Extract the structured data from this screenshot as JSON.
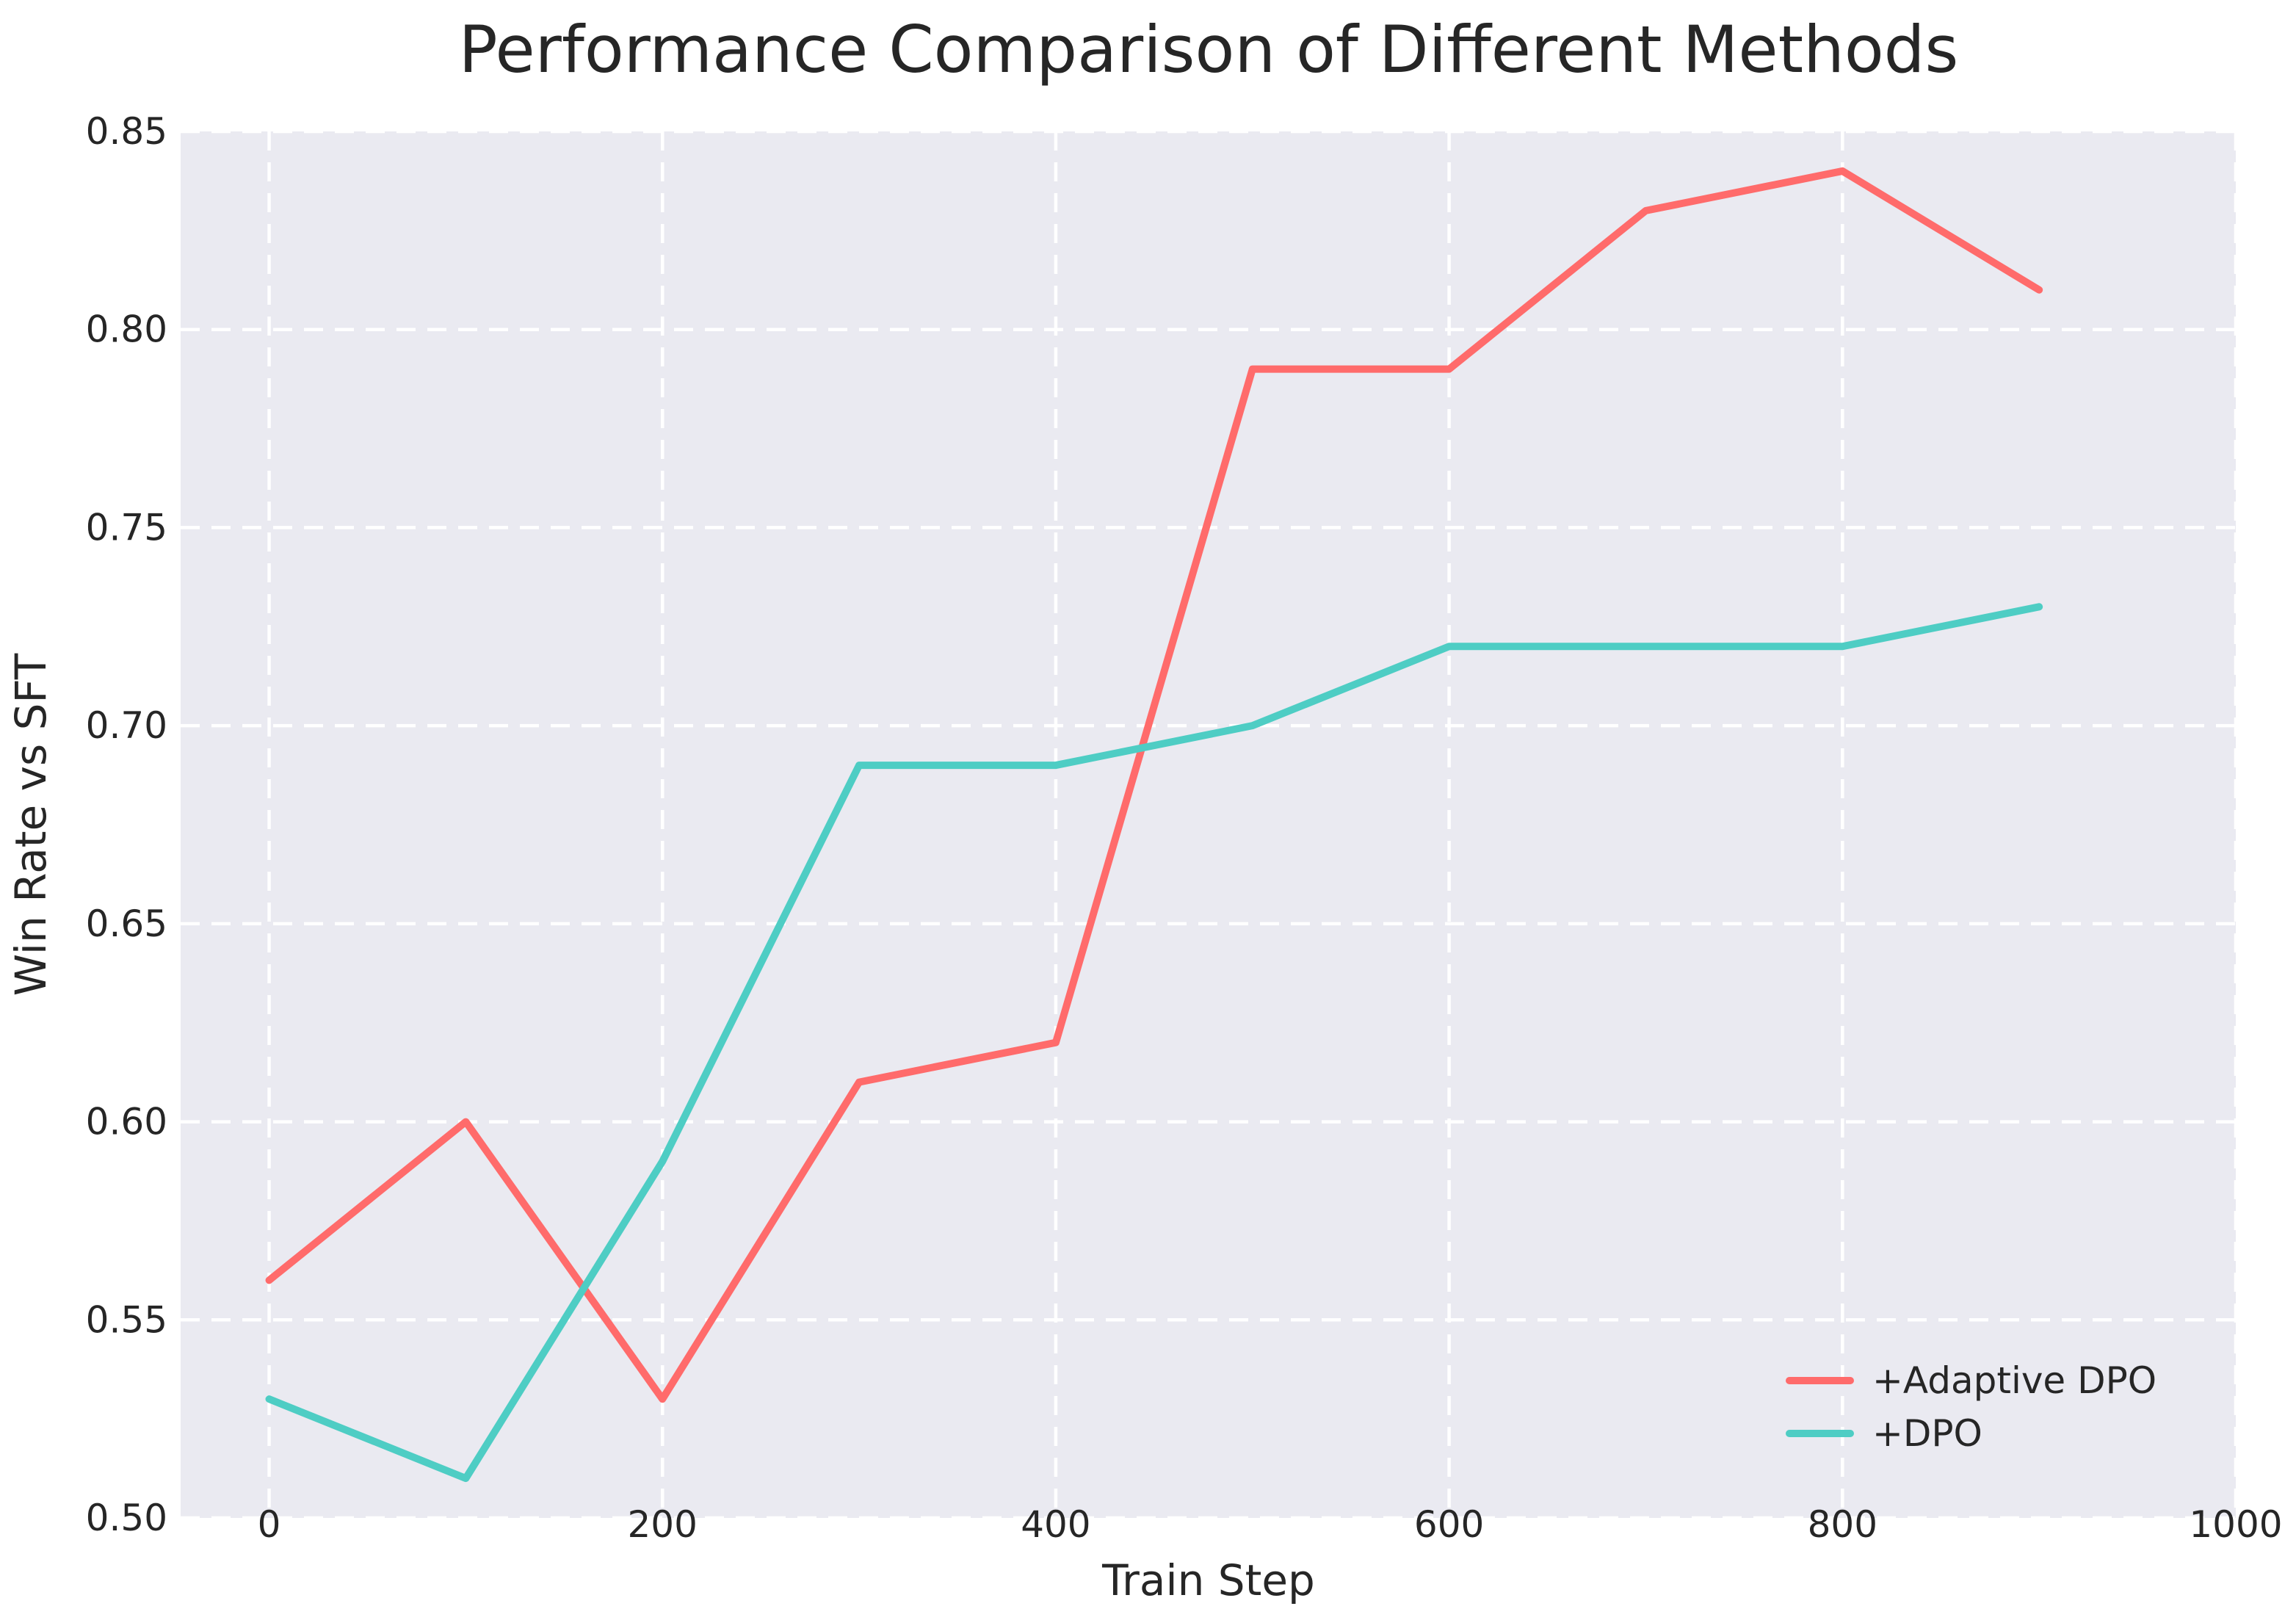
{
  "chart_data": {
    "type": "line",
    "title": "Performance Comparison of Different Methods",
    "xlabel": "Train Step",
    "ylabel": "Win Rate vs SFT",
    "x": [
      0,
      100,
      200,
      300,
      400,
      500,
      600,
      700,
      800,
      900
    ],
    "series": [
      {
        "name": "+Adaptive DPO",
        "color": "#FF6B6B",
        "values": [
          0.56,
          0.6,
          0.53,
          0.61,
          0.62,
          0.79,
          0.79,
          0.83,
          0.84,
          0.81
        ]
      },
      {
        "name": "+DPO",
        "color": "#4ECDC4",
        "values": [
          0.53,
          0.51,
          0.59,
          0.69,
          0.69,
          0.7,
          0.72,
          0.72,
          0.72,
          0.73
        ]
      }
    ],
    "xlim": [
      -45,
      1000
    ],
    "ylim": [
      0.5,
      0.85
    ],
    "xtick_values": [
      0,
      200,
      400,
      600,
      800,
      1000
    ],
    "xtick_labels": [
      "0",
      "200",
      "400",
      "600",
      "800",
      "1000"
    ],
    "ytick_values": [
      0.5,
      0.55,
      0.6,
      0.65,
      0.7,
      0.75,
      0.8,
      0.85
    ],
    "ytick_labels": [
      "0.50",
      "0.55",
      "0.60",
      "0.65",
      "0.70",
      "0.75",
      "0.80",
      "0.85"
    ],
    "grid": {
      "on": true,
      "style": "dashed",
      "color": "#ffffff"
    },
    "plot_background": "#EAEAF1",
    "text_color": "#262626",
    "legend": {
      "position": "lower-right",
      "entries": [
        "+Adaptive DPO",
        "+DPO"
      ]
    }
  }
}
